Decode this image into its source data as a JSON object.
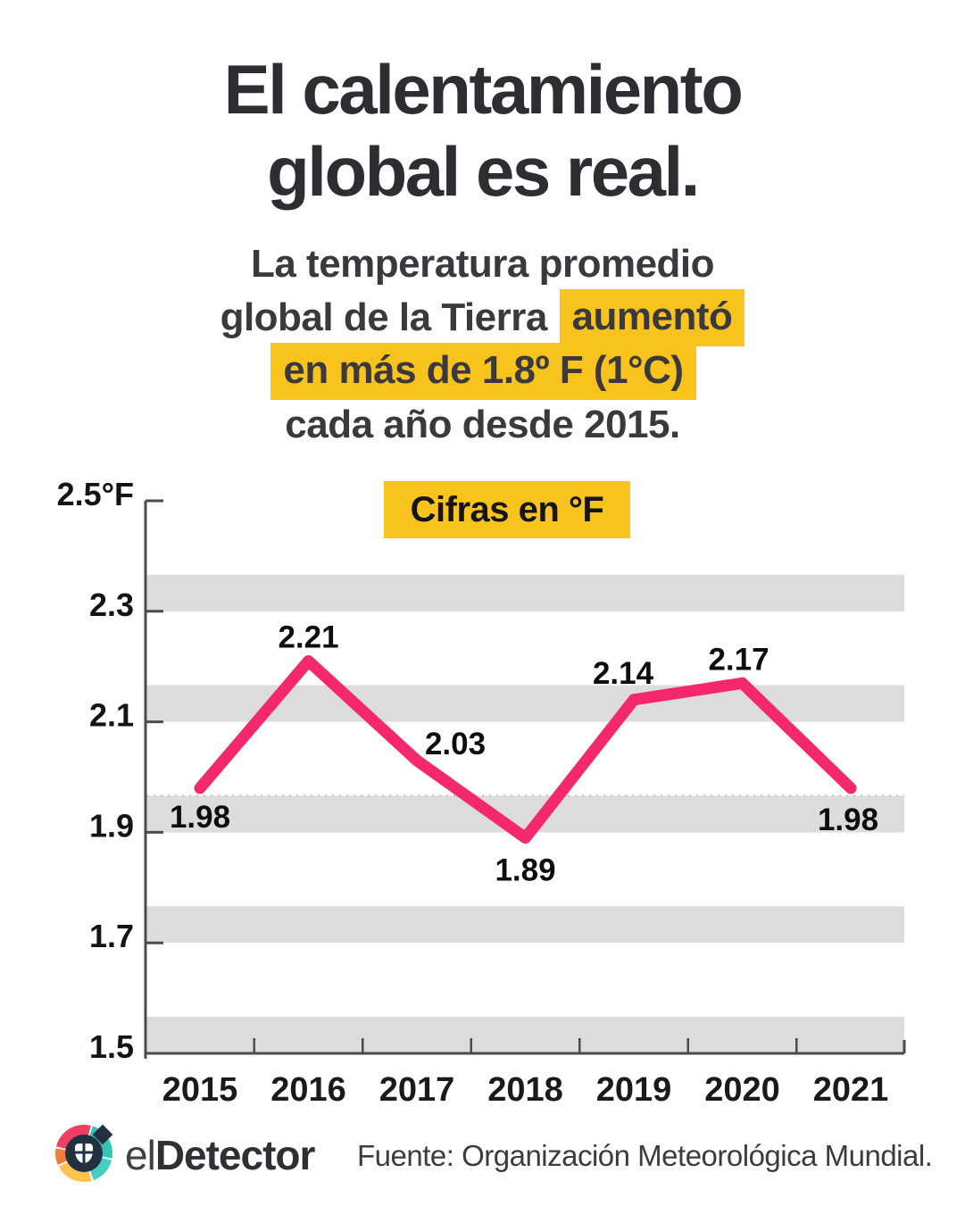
{
  "header": {
    "title_line1": "El calentamiento",
    "title_line2": "global es real."
  },
  "subtitle": {
    "line1": "La temperatura promedio",
    "line2_pre": "global de la Tierra",
    "line2_highlight": "aumentó",
    "line3_highlight": "en más de 1.8º F (1°C)",
    "line4": "cada año desde 2015."
  },
  "chart_data": {
    "type": "line",
    "badge": "Cifras en °F",
    "categories": [
      "2015",
      "2016",
      "2017",
      "2018",
      "2019",
      "2020",
      "2021"
    ],
    "values": [
      1.98,
      2.21,
      2.03,
      1.89,
      2.14,
      2.17,
      1.98
    ],
    "value_labels": [
      "1.98",
      "2.21",
      "2.03",
      "1.89",
      "2.14",
      "2.17",
      "1.98"
    ],
    "ylim": [
      1.5,
      2.5
    ],
    "yticks": [
      2.5,
      2.3,
      2.1,
      1.9,
      1.7,
      1.5
    ],
    "ytick_labels": [
      "2.5°F",
      "2.3",
      "2.1",
      "1.9",
      "1.7",
      "1.5"
    ],
    "ylabel_unit": "°F",
    "line_color": "#f4286b",
    "band_color": "#dcdcdc",
    "axis_color": "#4b4b4d",
    "legend_position": "none",
    "grid": "gray horizontal bands ending at ticks 2.3, 2.1, 1.9, 1.7, 1.5"
  },
  "colors": {
    "highlight_yellow": "#f9c31d",
    "accent_pink": "#f4286b",
    "title_dark": "#2e2e32"
  },
  "footer": {
    "brand_el": "el",
    "brand_detector": "Detector",
    "source": "Fuente: Organización Meteorológica Mundial."
  }
}
